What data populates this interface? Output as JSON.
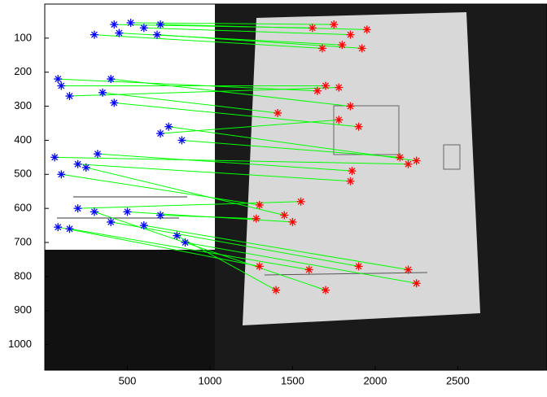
{
  "chart_data": {
    "type": "scatter",
    "xlim": [
      0,
      3040
    ],
    "ylim": [
      0,
      1075
    ],
    "y_reversed": true,
    "xticks": [
      500,
      1000,
      1500,
      2000,
      2500
    ],
    "yticks": [
      100,
      200,
      300,
      400,
      500,
      600,
      700,
      800,
      900,
      1000
    ],
    "left_color": "#0000ff",
    "right_color": "#ff0000",
    "line_color": "#00ff00",
    "left_x": [
      420,
      520,
      600,
      700,
      300,
      450,
      680,
      100,
      150,
      80,
      400,
      420,
      350,
      700,
      830,
      750,
      60,
      200,
      320,
      100,
      250,
      200,
      500,
      700,
      80,
      150,
      400,
      600,
      800,
      300,
      850
    ],
    "left_y": [
      60,
      55,
      70,
      60,
      90,
      85,
      90,
      240,
      270,
      220,
      220,
      290,
      260,
      380,
      400,
      360,
      450,
      470,
      440,
      500,
      480,
      600,
      610,
      620,
      655,
      660,
      640,
      650,
      680,
      610,
      700
    ],
    "right_x": [
      1620,
      1750,
      1850,
      1950,
      1680,
      1800,
      1920,
      1700,
      1780,
      1650,
      1850,
      1900,
      1410,
      1780,
      2150,
      2250,
      2200,
      1850,
      1860,
      1300,
      1450,
      1550,
      1500,
      1280,
      1300,
      1600,
      1900,
      2200,
      1400,
      1700,
      2250
    ],
    "right_y": [
      70,
      60,
      90,
      75,
      130,
      120,
      130,
      240,
      245,
      255,
      300,
      360,
      320,
      340,
      450,
      460,
      470,
      520,
      490,
      590,
      620,
      580,
      640,
      630,
      770,
      780,
      770,
      780,
      840,
      840,
      820
    ]
  }
}
